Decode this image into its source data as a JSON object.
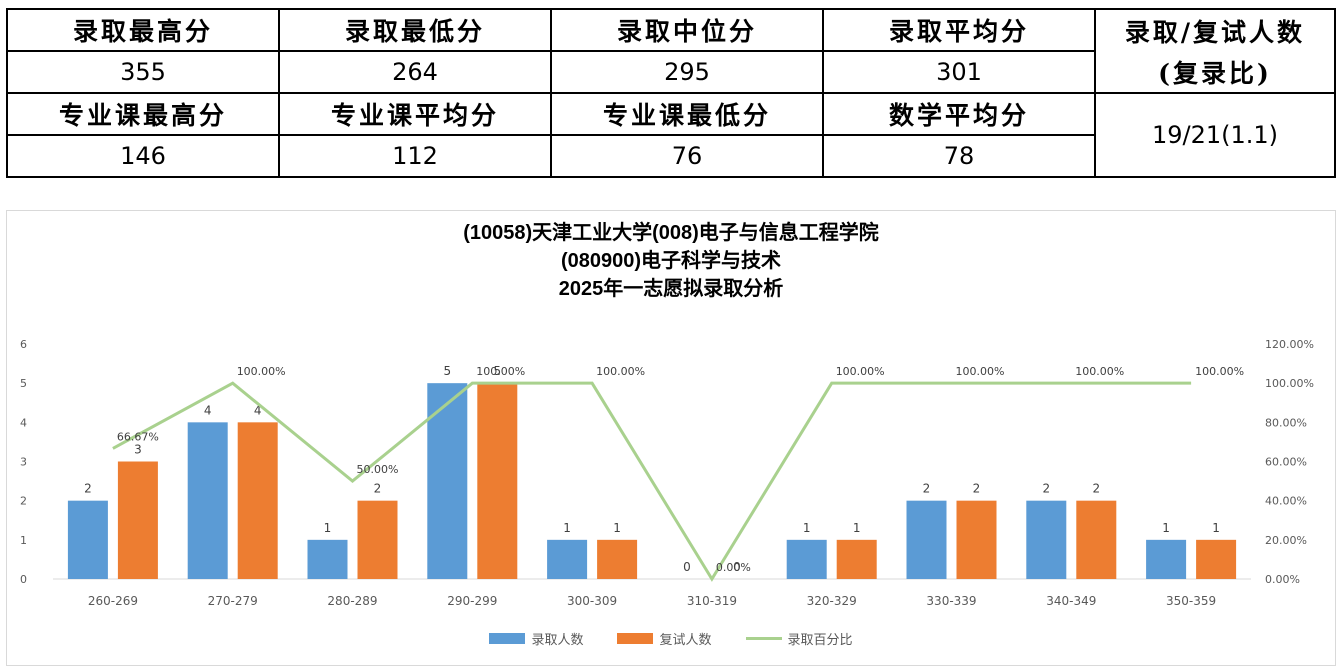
{
  "summary_table": {
    "row1_headers": [
      "录取最高分",
      "录取最低分",
      "录取中位分",
      "录取平均分"
    ],
    "row1_values": [
      "355",
      "264",
      "295",
      "301"
    ],
    "ratio_header_line1": "录取/复试人数",
    "ratio_header_line2": "(复录比)",
    "row2_headers": [
      "专业课最高分",
      "专业课平均分",
      "专业课最低分",
      "数学平均分"
    ],
    "row2_values": [
      "146",
      "112",
      "76",
      "78"
    ],
    "ratio_value": "19/21(1.1)"
  },
  "chart_data": {
    "type": "bar",
    "title_lines": [
      "(10058)天津工业大学(008)电子与信息工程学院",
      "(080900)电子科学与技术",
      "2025年一志愿拟录取分析"
    ],
    "categories": [
      "260-269",
      "270-279",
      "280-289",
      "290-299",
      "300-309",
      "310-319",
      "320-329",
      "330-339",
      "340-349",
      "350-359"
    ],
    "series": [
      {
        "name": "录取人数",
        "type": "bar",
        "axis": "left",
        "values": [
          2,
          4,
          1,
          5,
          1,
          0,
          1,
          2,
          2,
          1
        ],
        "labels": [
          "2",
          "4",
          "1",
          "5",
          "1",
          "0",
          "1",
          "2",
          "2",
          "1"
        ]
      },
      {
        "name": "复试人数",
        "type": "bar",
        "axis": "left",
        "values": [
          3,
          4,
          2,
          5,
          1,
          0,
          1,
          2,
          2,
          1
        ],
        "labels": [
          "3",
          "4",
          "2",
          "5",
          "1",
          "0",
          "1",
          "2",
          "2",
          "1"
        ]
      },
      {
        "name": "录取百分比",
        "type": "line",
        "axis": "right",
        "values": [
          66.67,
          100,
          50,
          100,
          100,
          0,
          100,
          100,
          100,
          100
        ],
        "labels": [
          "66.67%",
          "100.00%",
          "50.00%",
          "100.00%",
          "100.00%",
          "0.00%",
          "100.00%",
          "100.00%",
          "100.00%",
          "100.00%"
        ]
      }
    ],
    "y_left": {
      "min": 0,
      "max": 6,
      "ticks": [
        "0",
        "1",
        "2",
        "3",
        "4",
        "5",
        "6"
      ]
    },
    "y_right": {
      "min": 0,
      "max": 120,
      "ticks": [
        "0.00%",
        "20.00%",
        "40.00%",
        "60.00%",
        "80.00%",
        "100.00%",
        "120.00%"
      ]
    },
    "grid": false,
    "legend_position": "bottom",
    "colors": {
      "bar1": "#5b9bd5",
      "bar2": "#ed7d31",
      "line": "#a9d18e",
      "axis_text": "#595959"
    }
  }
}
